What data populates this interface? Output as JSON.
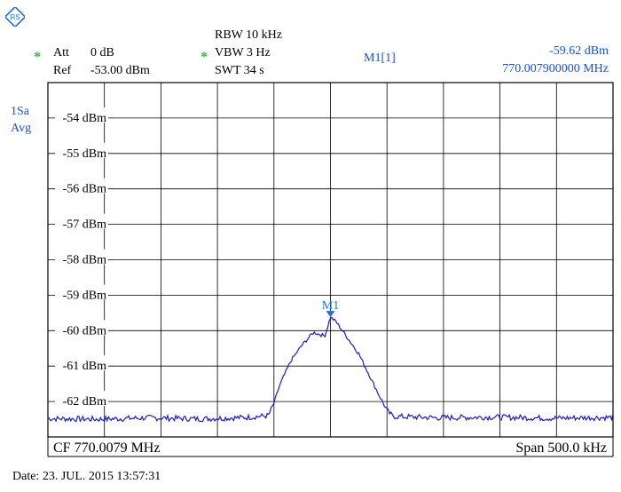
{
  "header": {
    "logo": "rs-logo-icon",
    "att_label": "Att",
    "att_value": "0 dB",
    "ref_label": "Ref",
    "ref_value": "-53.00 dBm",
    "rbw": "RBW 10 kHz",
    "vbw": "VBW 3 Hz",
    "swt": "SWT 34 s",
    "marker_name": "M1[1]",
    "marker_level": "-59.62 dBm",
    "marker_freq": "770.007900000 MHz",
    "star_symbol": "*"
  },
  "trace_info": {
    "line1": "1Sa",
    "line2": "Avg"
  },
  "footer": {
    "cf": "CF 770.0079 MHz",
    "span": "Span 500.0 kHz",
    "date": "Date:  23. JUL. 2015   13:57:31"
  },
  "colors": {
    "trace": "#1c1cc8",
    "marker": "#1e6fd9",
    "info_text": "#1a4fd8",
    "star": "#2fb84a"
  },
  "chart_data": {
    "type": "line",
    "title": "",
    "xlabel": "",
    "ylabel": "",
    "x_unit": "MHz",
    "y_unit": "dBm",
    "xlim": [
      769.7579,
      770.2579
    ],
    "ylim": [
      -63.0,
      -53.0
    ],
    "grid": true,
    "y_ticks": [
      -54,
      -55,
      -56,
      -57,
      -58,
      -59,
      -60,
      -61,
      -62
    ],
    "y_tick_labels": [
      "-54 dBm",
      "-55 dBm",
      "-56 dBm",
      "-57 dBm",
      "-58 dBm",
      "-59 dBm",
      "-60 dBm",
      "-61 dBm",
      "-62 dBm"
    ],
    "series": [
      {
        "x": [
          769.7579,
          769.8029,
          769.8479,
          769.8929,
          769.9329,
          769.9529,
          769.9579,
          769.9629,
          769.9729,
          769.9829,
          769.9929,
          770.0029,
          770.0079,
          770.0129,
          770.0229,
          770.0329,
          770.0429,
          770.0529,
          770.0579,
          770.0629,
          770.1029,
          770.1529,
          770.2029,
          770.2579
        ],
        "y": [
          -62.48,
          -62.5,
          -62.46,
          -62.49,
          -62.45,
          -62.4,
          -62.05,
          -61.55,
          -60.85,
          -60.4,
          -60.05,
          -60.15,
          -59.62,
          -59.75,
          -60.2,
          -60.65,
          -61.3,
          -61.95,
          -62.25,
          -62.42,
          -62.46,
          -62.44,
          -62.47,
          -62.45
        ]
      }
    ],
    "marker": {
      "label": "M1",
      "x": 770.0079,
      "y": -59.62
    }
  }
}
